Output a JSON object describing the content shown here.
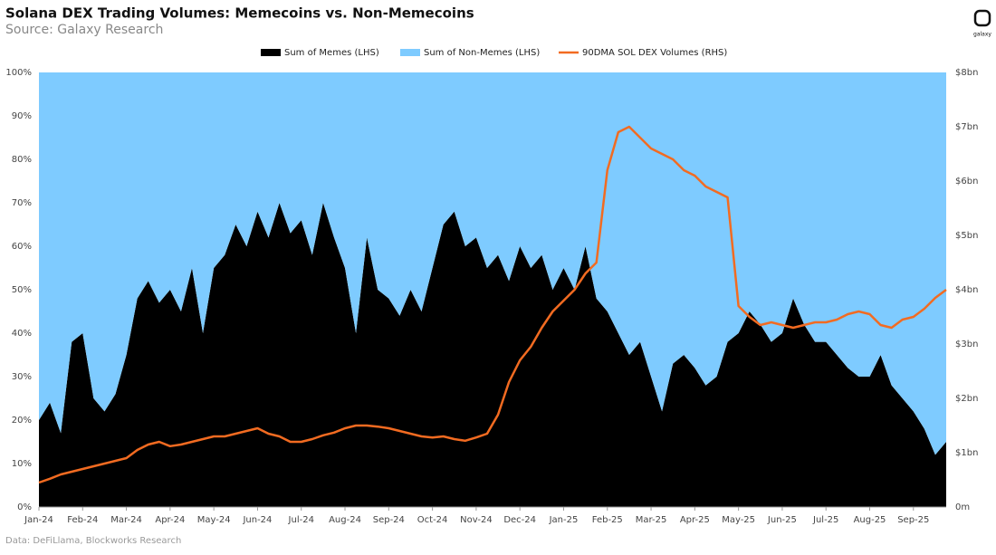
{
  "chart_data": {
    "type": "area",
    "title": "Solana DEX Trading Volumes: Memecoins vs. Non-Memecoins",
    "subtitle": "Source: Galaxy Research",
    "footnote": "Data: DeFiLlama, Blockworks Research",
    "logo_text": "galaxy",
    "categories": [
      "Jan-24",
      null,
      null,
      null,
      "Feb-24",
      null,
      null,
      null,
      "Mar-24",
      null,
      null,
      null,
      "Apr-24",
      null,
      null,
      null,
      "May-24",
      null,
      null,
      null,
      "Jun-24",
      null,
      null,
      null,
      "Jul-24",
      null,
      null,
      null,
      "Aug-24",
      null,
      null,
      null,
      "Sep-24",
      null,
      null,
      null,
      "Oct-24",
      null,
      null,
      null,
      "Nov-24",
      null,
      null,
      null,
      "Dec-24",
      null,
      null,
      null,
      "Jan-25",
      null,
      null,
      null,
      "Feb-25",
      null,
      null,
      null,
      "Mar-25",
      null,
      null,
      null,
      "Apr-25",
      null,
      null,
      null,
      "May-25",
      null,
      null,
      null,
      "Jun-25",
      null,
      null,
      null,
      "Jul-25",
      null,
      null,
      null,
      "Aug-25",
      null,
      null,
      null,
      "Sep-25",
      null,
      null,
      null
    ],
    "series": [
      {
        "name": "Sum of Memes (LHS)",
        "type": "area",
        "color": "#000000",
        "values": [
          20,
          24,
          17,
          38,
          40,
          25,
          22,
          26,
          35,
          48,
          52,
          47,
          50,
          45,
          55,
          40,
          55,
          58,
          65,
          60,
          68,
          62,
          70,
          63,
          66,
          58,
          70,
          62,
          55,
          40,
          62,
          50,
          48,
          44,
          50,
          45,
          55,
          65,
          68,
          60,
          62,
          55,
          58,
          52,
          60,
          55,
          58,
          50,
          55,
          50,
          60,
          48,
          45,
          40,
          35,
          38,
          30,
          22,
          33,
          35,
          32,
          28,
          30,
          38,
          40,
          45,
          42,
          38,
          40,
          48,
          42,
          38,
          38,
          35,
          32,
          30,
          30,
          35,
          28,
          25,
          22,
          18,
          12,
          15
        ]
      },
      {
        "name": "Sum of Non-Memes (LHS)",
        "type": "area",
        "color": "#7ecbff",
        "values": [
          80,
          76,
          83,
          62,
          60,
          75,
          78,
          74,
          65,
          52,
          48,
          53,
          50,
          55,
          45,
          60,
          45,
          42,
          35,
          40,
          32,
          38,
          30,
          37,
          34,
          42,
          30,
          38,
          45,
          60,
          38,
          50,
          52,
          56,
          50,
          55,
          45,
          35,
          32,
          40,
          38,
          45,
          42,
          48,
          40,
          45,
          42,
          50,
          45,
          50,
          40,
          52,
          55,
          60,
          65,
          62,
          70,
          78,
          67,
          65,
          68,
          72,
          70,
          62,
          60,
          55,
          58,
          62,
          60,
          52,
          58,
          62,
          62,
          65,
          68,
          70,
          70,
          65,
          72,
          75,
          78,
          82,
          88,
          85
        ]
      },
      {
        "name": "90DMA SOL DEX Volumes (RHS)",
        "type": "line",
        "axis": "y2",
        "color": "#f26b21",
        "values": [
          0.45,
          0.52,
          0.6,
          0.65,
          0.7,
          0.75,
          0.8,
          0.85,
          0.9,
          1.05,
          1.15,
          1.2,
          1.12,
          1.15,
          1.2,
          1.25,
          1.3,
          1.3,
          1.35,
          1.4,
          1.45,
          1.35,
          1.3,
          1.2,
          1.2,
          1.25,
          1.32,
          1.37,
          1.45,
          1.5,
          1.5,
          1.48,
          1.45,
          1.4,
          1.35,
          1.3,
          1.28,
          1.3,
          1.25,
          1.22,
          1.28,
          1.35,
          1.7,
          2.3,
          2.7,
          2.95,
          3.3,
          3.6,
          3.8,
          4.0,
          4.3,
          4.5,
          6.2,
          6.9,
          7.0,
          6.8,
          6.6,
          6.5,
          6.4,
          6.2,
          6.1,
          5.9,
          5.8,
          5.7,
          3.7,
          3.5,
          3.35,
          3.4,
          3.35,
          3.3,
          3.35,
          3.4,
          3.4,
          3.45,
          3.55,
          3.6,
          3.55,
          3.35,
          3.3,
          3.45,
          3.5,
          3.65,
          3.85,
          4.0
        ]
      }
    ],
    "ylim": [
      0,
      100
    ],
    "yticks": [
      {
        "value": 0,
        "label": "0%"
      },
      {
        "value": 10,
        "label": "10%"
      },
      {
        "value": 20,
        "label": "20%"
      },
      {
        "value": 30,
        "label": "30%"
      },
      {
        "value": 40,
        "label": "40%"
      },
      {
        "value": 50,
        "label": "50%"
      },
      {
        "value": 60,
        "label": "60%"
      },
      {
        "value": 70,
        "label": "70%"
      },
      {
        "value": 80,
        "label": "80%"
      },
      {
        "value": 90,
        "label": "90%"
      },
      {
        "value": 100,
        "label": "100%"
      }
    ],
    "y2lim": [
      0,
      8
    ],
    "y2ticks": [
      {
        "value": 0,
        "label": "0m"
      },
      {
        "value": 1,
        "label": "$1bn"
      },
      {
        "value": 2,
        "label": "$2bn"
      },
      {
        "value": 3,
        "label": "$3bn"
      },
      {
        "value": 4,
        "label": "$4bn"
      },
      {
        "value": 5,
        "label": "$5bn"
      },
      {
        "value": 6,
        "label": "$6bn"
      },
      {
        "value": 7,
        "label": "$7bn"
      },
      {
        "value": 8,
        "label": "$8bn"
      }
    ],
    "grid": false
  }
}
